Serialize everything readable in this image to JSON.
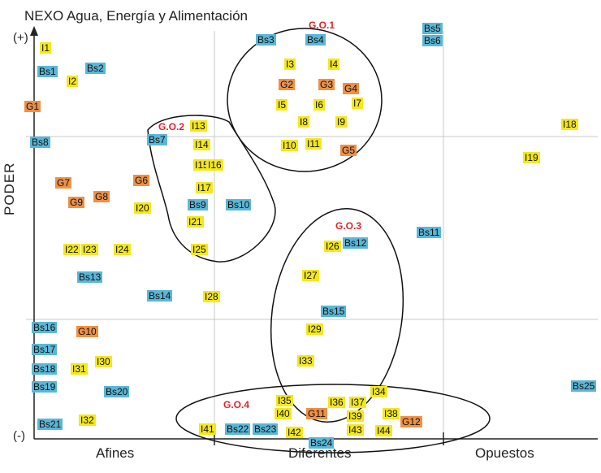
{
  "title": "NEXO Agua, Energía y Alimentación",
  "y_top": "(+)",
  "y_bottom": "(-)",
  "y_axis_label": "PODER",
  "x_categories": [
    "Afines",
    "Diferentes",
    "Opuestos"
  ],
  "colors": {
    "Bs": "#5ab7d7",
    "I": "#f4e81c",
    "G": "#ee9146",
    "group": "#e0242b"
  },
  "chart_data": {
    "type": "scatter",
    "title": "NEXO Agua, Energía y Alimentación",
    "ylabel": "PODER",
    "y_range_labels": [
      "(+)",
      "(-)"
    ],
    "categories": [
      "Afines",
      "Diferentes",
      "Opuestos"
    ],
    "groups": [
      {
        "label": "G.O.1",
        "members": [
          "Bs3",
          "Bs4",
          "I3",
          "I4",
          "G2",
          "G3",
          "G4",
          "I5",
          "I6",
          "I7",
          "I8",
          "I9",
          "I10",
          "I11",
          "G5"
        ]
      },
      {
        "label": "G.O.2",
        "members": [
          "Bs7",
          "I13",
          "I14",
          "I15",
          "I16",
          "I17",
          "Bs9",
          "Bs10",
          "I21",
          "I25"
        ]
      },
      {
        "label": "G.O.3",
        "members": [
          "I26",
          "Bs12",
          "I27",
          "Bs15",
          "I29",
          "I33"
        ]
      },
      {
        "label": "G.O.4",
        "members": [
          "I35",
          "I36",
          "I37",
          "I34",
          "I40",
          "G11",
          "I39",
          "I38",
          "G12",
          "I41",
          "Bs22",
          "Bs23",
          "I42",
          "I43",
          "I44",
          "Bs24"
        ]
      }
    ],
    "points": [
      {
        "id": "I1",
        "kind": "I"
      },
      {
        "id": "Bs1",
        "kind": "Bs"
      },
      {
        "id": "Bs2",
        "kind": "Bs"
      },
      {
        "id": "I2",
        "kind": "I"
      },
      {
        "id": "G1",
        "kind": "G"
      },
      {
        "id": "Bs8",
        "kind": "Bs"
      },
      {
        "id": "G7",
        "kind": "G"
      },
      {
        "id": "G6",
        "kind": "G"
      },
      {
        "id": "G9",
        "kind": "G"
      },
      {
        "id": "G8",
        "kind": "G"
      },
      {
        "id": "I20",
        "kind": "I"
      },
      {
        "id": "I22",
        "kind": "I"
      },
      {
        "id": "I23",
        "kind": "I"
      },
      {
        "id": "I24",
        "kind": "I"
      },
      {
        "id": "Bs13",
        "kind": "Bs"
      },
      {
        "id": "Bs14",
        "kind": "Bs"
      },
      {
        "id": "I28",
        "kind": "I"
      },
      {
        "id": "Bs16",
        "kind": "Bs"
      },
      {
        "id": "G10",
        "kind": "G"
      },
      {
        "id": "Bs17",
        "kind": "Bs"
      },
      {
        "id": "I30",
        "kind": "I"
      },
      {
        "id": "Bs18",
        "kind": "Bs"
      },
      {
        "id": "I31",
        "kind": "I"
      },
      {
        "id": "Bs19",
        "kind": "Bs"
      },
      {
        "id": "Bs20",
        "kind": "Bs"
      },
      {
        "id": "I32",
        "kind": "I"
      },
      {
        "id": "Bs21",
        "kind": "Bs"
      },
      {
        "id": "Bs7",
        "kind": "Bs"
      },
      {
        "id": "I13",
        "kind": "I"
      },
      {
        "id": "I14",
        "kind": "I"
      },
      {
        "id": "I15",
        "kind": "I"
      },
      {
        "id": "I16",
        "kind": "I"
      },
      {
        "id": "I17",
        "kind": "I"
      },
      {
        "id": "Bs9",
        "kind": "Bs"
      },
      {
        "id": "Bs10",
        "kind": "Bs"
      },
      {
        "id": "I21",
        "kind": "I"
      },
      {
        "id": "I25",
        "kind": "I"
      },
      {
        "id": "Bs3",
        "kind": "Bs"
      },
      {
        "id": "Bs4",
        "kind": "Bs"
      },
      {
        "id": "I3",
        "kind": "I"
      },
      {
        "id": "I4",
        "kind": "I"
      },
      {
        "id": "G2",
        "kind": "G"
      },
      {
        "id": "G3",
        "kind": "G"
      },
      {
        "id": "G4",
        "kind": "G"
      },
      {
        "id": "I5",
        "kind": "I"
      },
      {
        "id": "I6",
        "kind": "I"
      },
      {
        "id": "I7",
        "kind": "I"
      },
      {
        "id": "I8",
        "kind": "I"
      },
      {
        "id": "I9",
        "kind": "I"
      },
      {
        "id": "I10",
        "kind": "I"
      },
      {
        "id": "I11",
        "kind": "I"
      },
      {
        "id": "G5",
        "kind": "G"
      },
      {
        "id": "I26",
        "kind": "I"
      },
      {
        "id": "Bs12",
        "kind": "Bs"
      },
      {
        "id": "I27",
        "kind": "I"
      },
      {
        "id": "Bs15",
        "kind": "Bs"
      },
      {
        "id": "I29",
        "kind": "I"
      },
      {
        "id": "I33",
        "kind": "I"
      },
      {
        "id": "Bs11",
        "kind": "Bs"
      },
      {
        "id": "I35",
        "kind": "I"
      },
      {
        "id": "I36",
        "kind": "I"
      },
      {
        "id": "I37",
        "kind": "I"
      },
      {
        "id": "I34",
        "kind": "I"
      },
      {
        "id": "I40",
        "kind": "I"
      },
      {
        "id": "G11",
        "kind": "G"
      },
      {
        "id": "I39",
        "kind": "I"
      },
      {
        "id": "I38",
        "kind": "I"
      },
      {
        "id": "G12",
        "kind": "G"
      },
      {
        "id": "I41",
        "kind": "I"
      },
      {
        "id": "Bs22",
        "kind": "Bs"
      },
      {
        "id": "Bs23",
        "kind": "Bs"
      },
      {
        "id": "I42",
        "kind": "I"
      },
      {
        "id": "I43",
        "kind": "I"
      },
      {
        "id": "I44",
        "kind": "I"
      },
      {
        "id": "Bs24",
        "kind": "Bs"
      },
      {
        "id": "Bs5",
        "kind": "Bs"
      },
      {
        "id": "Bs6",
        "kind": "Bs"
      },
      {
        "id": "I18",
        "kind": "I"
      },
      {
        "id": "I19",
        "kind": "I"
      },
      {
        "id": "Bs25",
        "kind": "Bs"
      }
    ]
  }
}
